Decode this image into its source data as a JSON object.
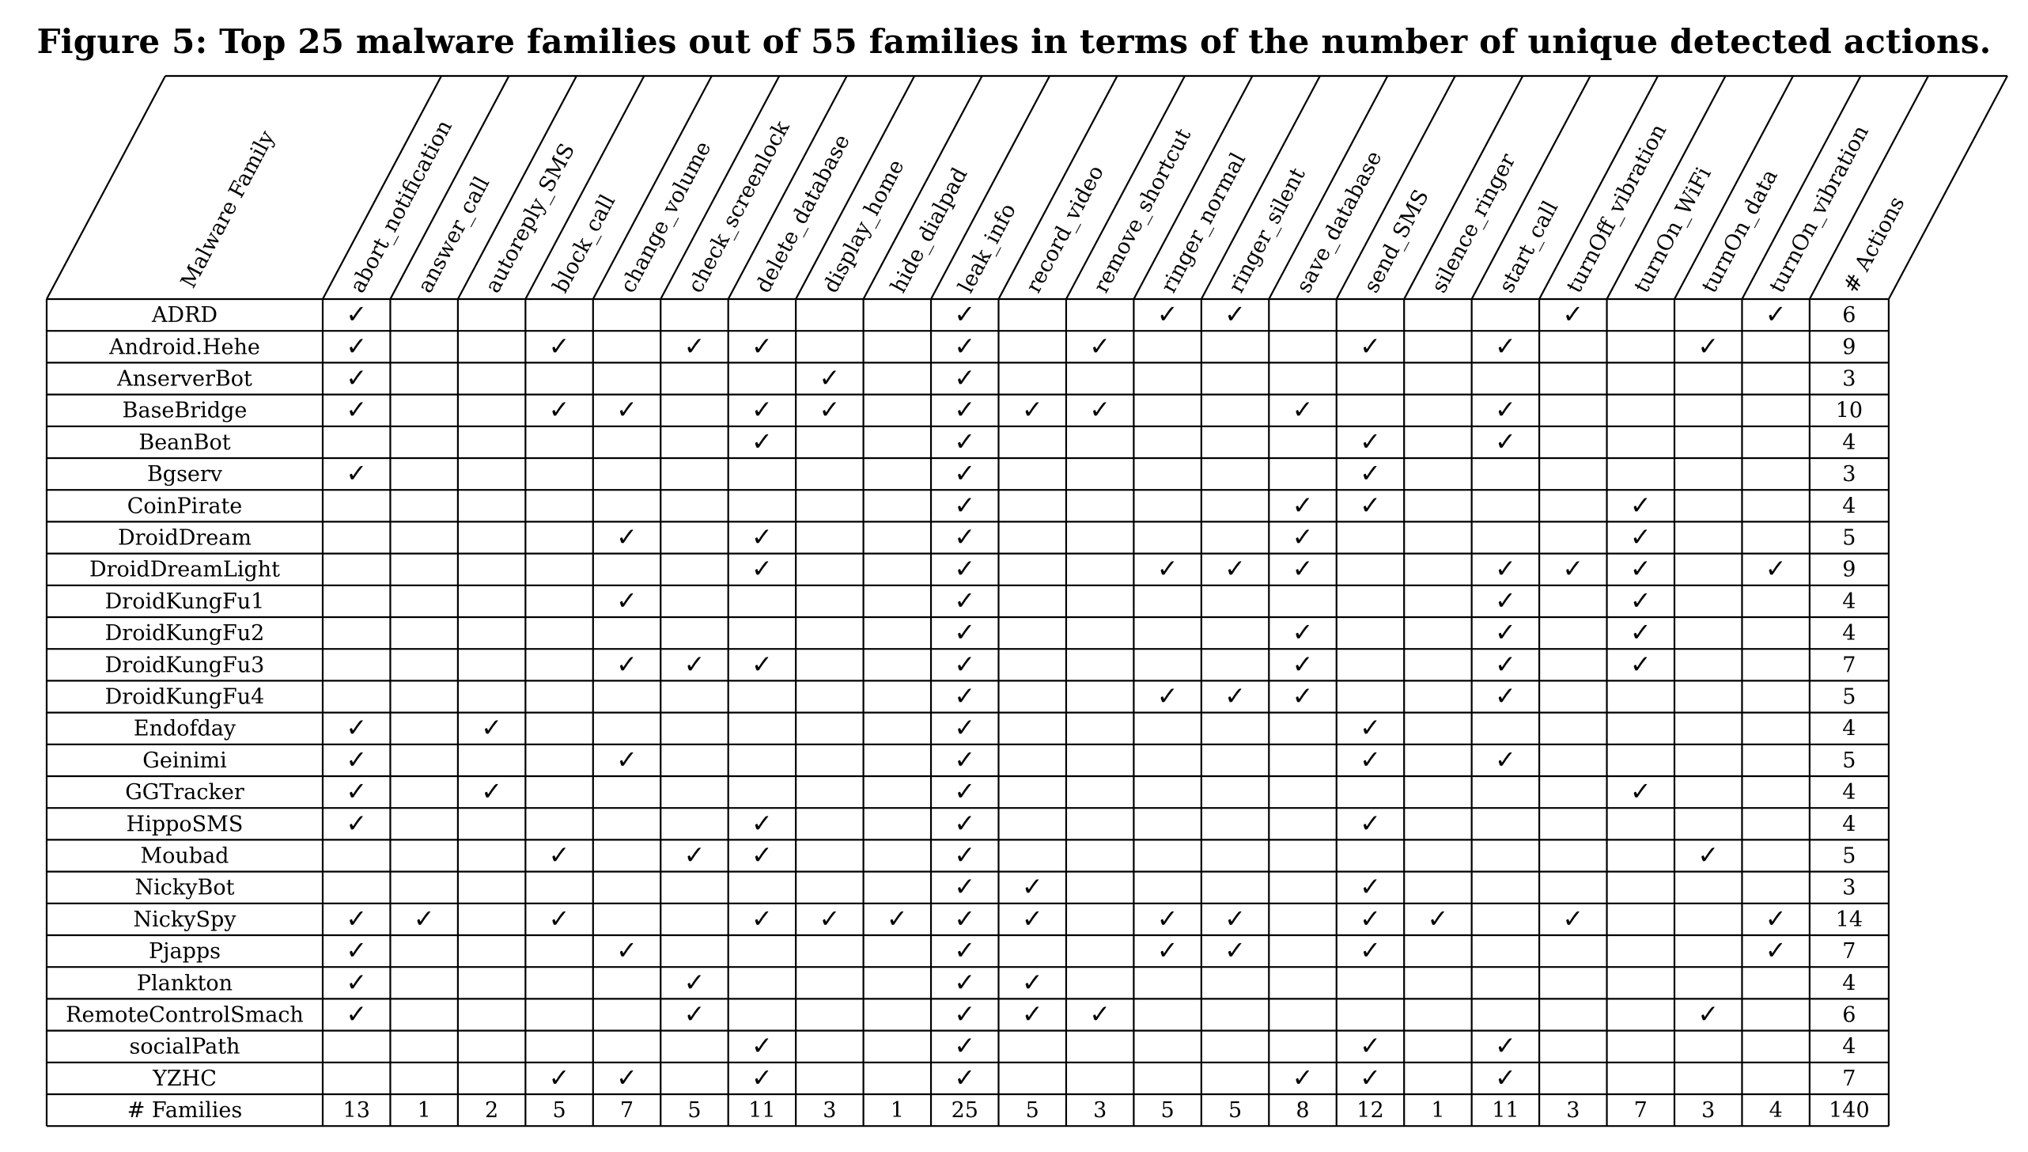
{
  "caption": "Figure 5: Top 25 malware families out of 55 families in terms of the number of unique detected actions.",
  "header": {
    "family_col": "Malware Family",
    "actions": [
      "abort_notification",
      "answer_call",
      "autoreply_SMS",
      "block_call",
      "change_volume",
      "check_screenlock",
      "delete_database",
      "display_home",
      "hide_dialpad",
      "leak_info",
      "record_video",
      "remove_shortcut",
      "ringer_normal",
      "ringer_silent",
      "save_database",
      "send_SMS",
      "silence_ringer",
      "start_call",
      "turnOff_vibration",
      "turnOn_WiFi",
      "turnOn_data",
      "turnOn_vibration"
    ],
    "count_col": "# Actions"
  },
  "check_mark": "✓",
  "rows": [
    {
      "family": "ADRD",
      "checks": [
        1,
        0,
        0,
        0,
        0,
        0,
        0,
        0,
        0,
        1,
        0,
        0,
        1,
        1,
        0,
        0,
        0,
        0,
        1,
        0,
        0,
        1
      ],
      "count": "6"
    },
    {
      "family": "Android.Hehe",
      "checks": [
        1,
        0,
        0,
        1,
        0,
        1,
        1,
        0,
        0,
        1,
        0,
        1,
        0,
        0,
        0,
        1,
        0,
        1,
        0,
        0,
        1,
        0
      ],
      "count": "9"
    },
    {
      "family": "AnserverBot",
      "checks": [
        1,
        0,
        0,
        0,
        0,
        0,
        0,
        1,
        0,
        1,
        0,
        0,
        0,
        0,
        0,
        0,
        0,
        0,
        0,
        0,
        0,
        0
      ],
      "count": "3"
    },
    {
      "family": "BaseBridge",
      "checks": [
        1,
        0,
        0,
        1,
        1,
        0,
        1,
        1,
        0,
        1,
        1,
        1,
        0,
        0,
        1,
        0,
        0,
        1,
        0,
        0,
        0,
        0
      ],
      "count": "10"
    },
    {
      "family": "BeanBot",
      "checks": [
        0,
        0,
        0,
        0,
        0,
        0,
        1,
        0,
        0,
        1,
        0,
        0,
        0,
        0,
        0,
        1,
        0,
        1,
        0,
        0,
        0,
        0
      ],
      "count": "4"
    },
    {
      "family": "Bgserv",
      "checks": [
        1,
        0,
        0,
        0,
        0,
        0,
        0,
        0,
        0,
        1,
        0,
        0,
        0,
        0,
        0,
        1,
        0,
        0,
        0,
        0,
        0,
        0
      ],
      "count": "3"
    },
    {
      "family": "CoinPirate",
      "checks": [
        0,
        0,
        0,
        0,
        0,
        0,
        0,
        0,
        0,
        1,
        0,
        0,
        0,
        0,
        1,
        1,
        0,
        0,
        0,
        1,
        0,
        0
      ],
      "count": "4"
    },
    {
      "family": "DroidDream",
      "checks": [
        0,
        0,
        0,
        0,
        1,
        0,
        1,
        0,
        0,
        1,
        0,
        0,
        0,
        0,
        1,
        0,
        0,
        0,
        0,
        1,
        0,
        0
      ],
      "count": "5"
    },
    {
      "family": "DroidDreamLight",
      "checks": [
        0,
        0,
        0,
        0,
        0,
        0,
        1,
        0,
        0,
        1,
        0,
        0,
        1,
        1,
        1,
        0,
        0,
        1,
        1,
        1,
        0,
        1
      ],
      "count": "9"
    },
    {
      "family": "DroidKungFu1",
      "checks": [
        0,
        0,
        0,
        0,
        1,
        0,
        0,
        0,
        0,
        1,
        0,
        0,
        0,
        0,
        0,
        0,
        0,
        1,
        0,
        1,
        0,
        0
      ],
      "count": "4"
    },
    {
      "family": "DroidKungFu2",
      "checks": [
        0,
        0,
        0,
        0,
        0,
        0,
        0,
        0,
        0,
        1,
        0,
        0,
        0,
        0,
        1,
        0,
        0,
        1,
        0,
        1,
        0,
        0
      ],
      "count": "4"
    },
    {
      "family": "DroidKungFu3",
      "checks": [
        0,
        0,
        0,
        0,
        1,
        1,
        1,
        0,
        0,
        1,
        0,
        0,
        0,
        0,
        1,
        0,
        0,
        1,
        0,
        1,
        0,
        0
      ],
      "count": "7"
    },
    {
      "family": "DroidKungFu4",
      "checks": [
        0,
        0,
        0,
        0,
        0,
        0,
        0,
        0,
        0,
        1,
        0,
        0,
        1,
        1,
        1,
        0,
        0,
        1,
        0,
        0,
        0,
        0
      ],
      "count": "5"
    },
    {
      "family": "Endofday",
      "checks": [
        1,
        0,
        1,
        0,
        0,
        0,
        0,
        0,
        0,
        1,
        0,
        0,
        0,
        0,
        0,
        1,
        0,
        0,
        0,
        0,
        0,
        0
      ],
      "count": "4"
    },
    {
      "family": "Geinimi",
      "checks": [
        1,
        0,
        0,
        0,
        1,
        0,
        0,
        0,
        0,
        1,
        0,
        0,
        0,
        0,
        0,
        1,
        0,
        1,
        0,
        0,
        0,
        0
      ],
      "count": "5"
    },
    {
      "family": "GGTracker",
      "checks": [
        1,
        0,
        1,
        0,
        0,
        0,
        0,
        0,
        0,
        1,
        0,
        0,
        0,
        0,
        0,
        0,
        0,
        0,
        0,
        1,
        0,
        0
      ],
      "count": "4"
    },
    {
      "family": "HippoSMS",
      "checks": [
        1,
        0,
        0,
        0,
        0,
        0,
        1,
        0,
        0,
        1,
        0,
        0,
        0,
        0,
        0,
        1,
        0,
        0,
        0,
        0,
        0,
        0
      ],
      "count": "4"
    },
    {
      "family": "Moubad",
      "checks": [
        0,
        0,
        0,
        1,
        0,
        1,
        1,
        0,
        0,
        1,
        0,
        0,
        0,
        0,
        0,
        0,
        0,
        0,
        0,
        0,
        1,
        0
      ],
      "count": "5"
    },
    {
      "family": "NickyBot",
      "checks": [
        0,
        0,
        0,
        0,
        0,
        0,
        0,
        0,
        0,
        1,
        1,
        0,
        0,
        0,
        0,
        1,
        0,
        0,
        0,
        0,
        0,
        0
      ],
      "count": "3"
    },
    {
      "family": "NickySpy",
      "checks": [
        1,
        1,
        0,
        1,
        0,
        0,
        1,
        1,
        1,
        1,
        1,
        0,
        1,
        1,
        0,
        1,
        1,
        0,
        1,
        0,
        0,
        1
      ],
      "count": "14"
    },
    {
      "family": "Pjapps",
      "checks": [
        1,
        0,
        0,
        0,
        1,
        0,
        0,
        0,
        0,
        1,
        0,
        0,
        1,
        1,
        0,
        1,
        0,
        0,
        0,
        0,
        0,
        1
      ],
      "count": "7"
    },
    {
      "family": "Plankton",
      "checks": [
        1,
        0,
        0,
        0,
        0,
        1,
        0,
        0,
        0,
        1,
        1,
        0,
        0,
        0,
        0,
        0,
        0,
        0,
        0,
        0,
        0,
        0
      ],
      "count": "4"
    },
    {
      "family": "RemoteControlSmach",
      "checks": [
        1,
        0,
        0,
        0,
        0,
        1,
        0,
        0,
        0,
        1,
        1,
        1,
        0,
        0,
        0,
        0,
        0,
        0,
        0,
        0,
        1,
        0
      ],
      "count": "6"
    },
    {
      "family": "socialPath",
      "checks": [
        0,
        0,
        0,
        0,
        0,
        0,
        1,
        0,
        0,
        1,
        0,
        0,
        0,
        0,
        0,
        1,
        0,
        1,
        0,
        0,
        0,
        0
      ],
      "count": "4"
    },
    {
      "family": "YZHC",
      "checks": [
        0,
        0,
        0,
        1,
        1,
        0,
        1,
        0,
        0,
        1,
        0,
        0,
        0,
        0,
        1,
        1,
        0,
        1,
        0,
        0,
        0,
        0
      ],
      "count": "7"
    }
  ],
  "totals": {
    "label": "# Families",
    "values": [
      "13",
      "1",
      "2",
      "5",
      "7",
      "5",
      "11",
      "3",
      "1",
      "25",
      "5",
      "3",
      "5",
      "5",
      "8",
      "12",
      "1",
      "11",
      "3",
      "7",
      "3",
      "4"
    ],
    "count": "140"
  }
}
